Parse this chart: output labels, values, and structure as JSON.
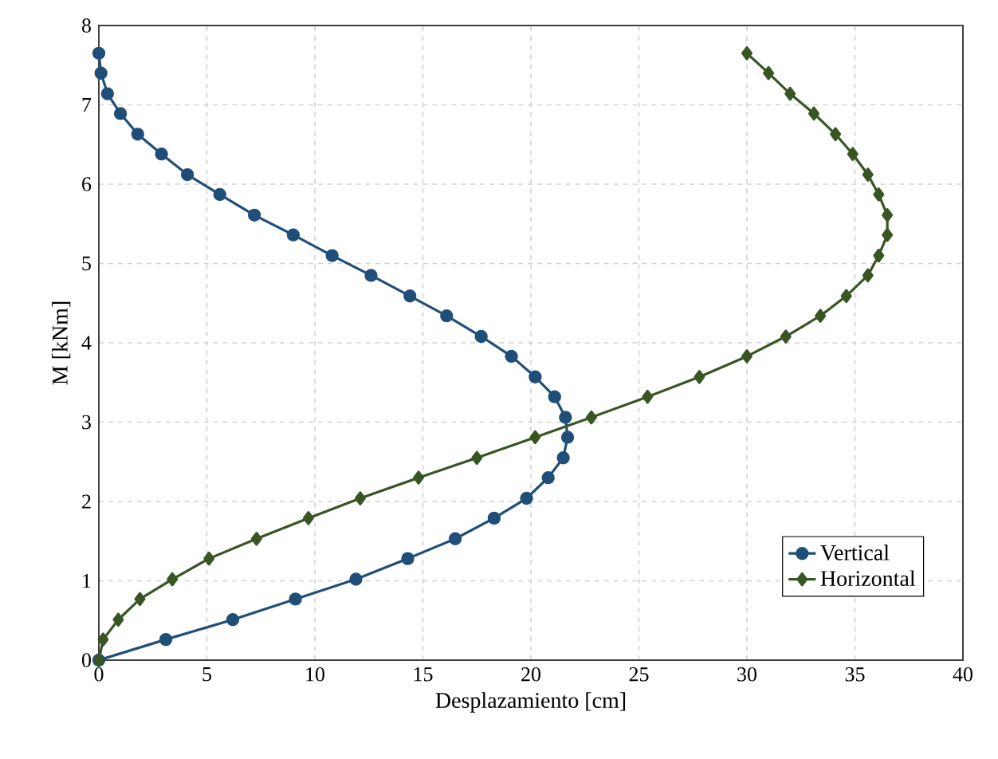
{
  "chart_data": {
    "type": "line",
    "xlabel": "Desplazamiento [cm]",
    "ylabel": "M [kNm]",
    "xlim": [
      0,
      40
    ],
    "ylim": [
      0,
      8
    ],
    "xticks": [
      0,
      5,
      10,
      15,
      20,
      25,
      30,
      35,
      40
    ],
    "yticks": [
      0,
      1,
      2,
      3,
      4,
      5,
      6,
      7,
      8
    ],
    "grid": true,
    "legend": "bottom right",
    "line_style": "solid",
    "series": [
      {
        "name": "Vertical",
        "color": "#1f4e79",
        "marker": "circle",
        "x": [
          0,
          3.1,
          6.2,
          9.1,
          11.9,
          14.3,
          16.5,
          18.3,
          19.8,
          20.8,
          21.5,
          21.7,
          21.6,
          21.1,
          20.2,
          19.1,
          17.7,
          16.1,
          14.4,
          12.6,
          10.8,
          9.0,
          7.2,
          5.6,
          4.1,
          2.9,
          1.8,
          1.0,
          0.4,
          0.1,
          0
        ],
        "values": [
          0,
          0.26,
          0.51,
          0.77,
          1.02,
          1.28,
          1.53,
          1.79,
          2.04,
          2.3,
          2.55,
          2.81,
          3.06,
          3.32,
          3.57,
          3.83,
          4.08,
          4.34,
          4.59,
          4.85,
          5.1,
          5.36,
          5.61,
          5.87,
          6.12,
          6.38,
          6.63,
          6.89,
          7.14,
          7.4,
          7.65
        ]
      },
      {
        "name": "Horizontal",
        "color": "#375623",
        "marker": "diamond",
        "x": [
          0,
          0.2,
          0.9,
          1.9,
          3.4,
          5.1,
          7.3,
          9.7,
          12.1,
          14.8,
          17.5,
          20.2,
          22.8,
          25.4,
          27.8,
          30.0,
          31.8,
          33.4,
          34.6,
          35.6,
          36.1,
          36.5,
          36.5,
          36.1,
          35.6,
          34.9,
          34.1,
          33.1,
          32.0,
          31.0,
          30.0
        ],
        "values": [
          0,
          0.26,
          0.51,
          0.77,
          1.02,
          1.28,
          1.53,
          1.79,
          2.04,
          2.3,
          2.55,
          2.81,
          3.06,
          3.32,
          3.57,
          3.83,
          4.08,
          4.34,
          4.59,
          4.85,
          5.1,
          5.36,
          5.61,
          5.87,
          6.12,
          6.38,
          6.63,
          6.89,
          7.14,
          7.4,
          7.65
        ]
      }
    ]
  }
}
